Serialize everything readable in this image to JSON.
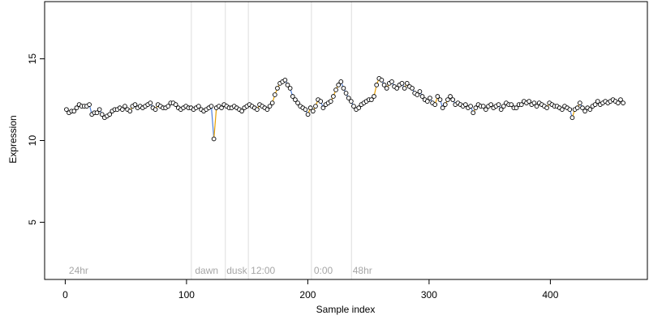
{
  "chart_data": {
    "type": "scatter",
    "title": "",
    "xlabel": "Sample index",
    "ylabel": "Expression",
    "xlim": [
      -17,
      480
    ],
    "ylim": [
      1.5,
      18.5
    ],
    "x_ticks": [
      0,
      100,
      200,
      300,
      400
    ],
    "y_ticks": [
      5,
      10,
      15
    ],
    "grid": false,
    "legend": "none",
    "phase_markers": [
      {
        "x": 104,
        "label": "",
        "label_x": 0
      },
      {
        "x": 132,
        "label": "dawn",
        "label_x": 107
      },
      {
        "x": 151,
        "label": "dusk",
        "label_x": 133
      },
      {
        "x": 203,
        "label": "12:00",
        "label_x": 153
      },
      {
        "x": 236,
        "label": "0:00",
        "label_x": 205
      },
      {
        "x": 0,
        "label": "48hr",
        "label_x": 237
      },
      {
        "x": 0,
        "label": "24hr",
        "label_x": 3
      }
    ],
    "colors": {
      "points_stroke": "#000000",
      "points_fill": "#ffffff",
      "segment_up": "#e69f00",
      "segment_down": "#4f7fd9",
      "marker_line": "#dddddd",
      "marker_label": "#a6a6a6"
    },
    "series": [
      {
        "values_y": [
          11.9,
          11.7,
          11.8,
          11.8,
          12.0,
          12.2,
          12.1,
          12.1,
          12.1,
          12.2,
          11.6,
          11.7,
          11.7,
          11.9,
          11.6,
          11.4,
          11.5,
          11.6,
          11.8,
          11.9,
          11.9,
          12.0,
          11.9,
          12.1,
          11.9,
          11.8,
          12.1,
          12.2,
          12.0,
          12.1,
          12.0,
          12.1,
          12.2,
          12.3,
          12.0,
          11.9,
          12.2,
          12.1,
          12.0,
          12.0,
          12.1,
          12.3,
          12.3,
          12.2,
          12.0,
          11.9,
          12.0,
          12.1,
          12.0,
          12.0,
          11.9,
          12.0,
          12.1,
          11.9,
          11.8,
          11.9,
          12.0,
          12.1,
          10.1,
          12.0,
          12.1,
          12.0,
          12.2,
          12.1,
          12.0,
          12.0,
          12.1,
          12.0,
          11.9,
          11.8,
          12.0,
          12.1,
          12.2,
          12.1,
          12.0,
          11.9,
          12.2,
          12.1,
          12.0,
          11.9,
          12.1,
          12.3,
          12.8,
          13.2,
          13.5,
          13.6,
          13.7,
          13.4,
          13.2,
          12.7,
          12.5,
          12.3,
          12.1,
          12.0,
          11.9,
          11.6,
          12.0,
          11.8,
          12.1,
          12.5,
          12.4,
          12.0,
          12.2,
          12.3,
          12.4,
          12.7,
          13.1,
          13.4,
          13.6,
          13.2,
          12.9,
          12.6,
          12.4,
          12.1,
          11.9,
          12.0,
          12.2,
          12.3,
          12.4,
          12.5,
          12.5,
          12.7,
          13.4,
          13.8,
          13.7,
          13.4,
          13.2,
          13.5,
          13.6,
          13.3,
          13.2,
          13.4,
          13.5,
          13.2,
          13.5,
          13.3,
          13.2,
          12.9,
          12.8,
          13.0,
          12.7,
          12.5,
          12.4,
          12.6,
          12.3,
          12.2,
          12.7,
          12.5,
          12.0,
          12.2,
          12.5,
          12.7,
          12.5,
          12.2,
          12.3,
          12.2,
          12.1,
          12.2,
          12.0,
          12.1,
          11.7,
          12.0,
          12.2,
          12.1,
          12.1,
          11.9,
          12.1,
          12.2,
          12.0,
          12.1,
          12.2,
          11.9,
          12.1,
          12.3,
          12.2,
          12.2,
          12.0,
          12.0,
          12.2,
          12.2,
          12.4,
          12.3,
          12.4,
          12.2,
          12.3,
          12.1,
          12.3,
          12.2,
          12.1,
          12.0,
          12.3,
          12.2,
          12.1,
          12.1,
          12.0,
          11.9,
          12.1,
          12.0,
          11.9,
          11.4,
          11.9,
          12.0,
          12.3,
          12.0,
          11.8,
          12.0,
          11.9,
          12.1,
          12.2,
          12.4,
          12.2,
          12.3,
          12.4,
          12.3,
          12.4,
          12.5,
          12.4,
          12.3,
          12.5,
          12.3
        ]
      }
    ]
  }
}
